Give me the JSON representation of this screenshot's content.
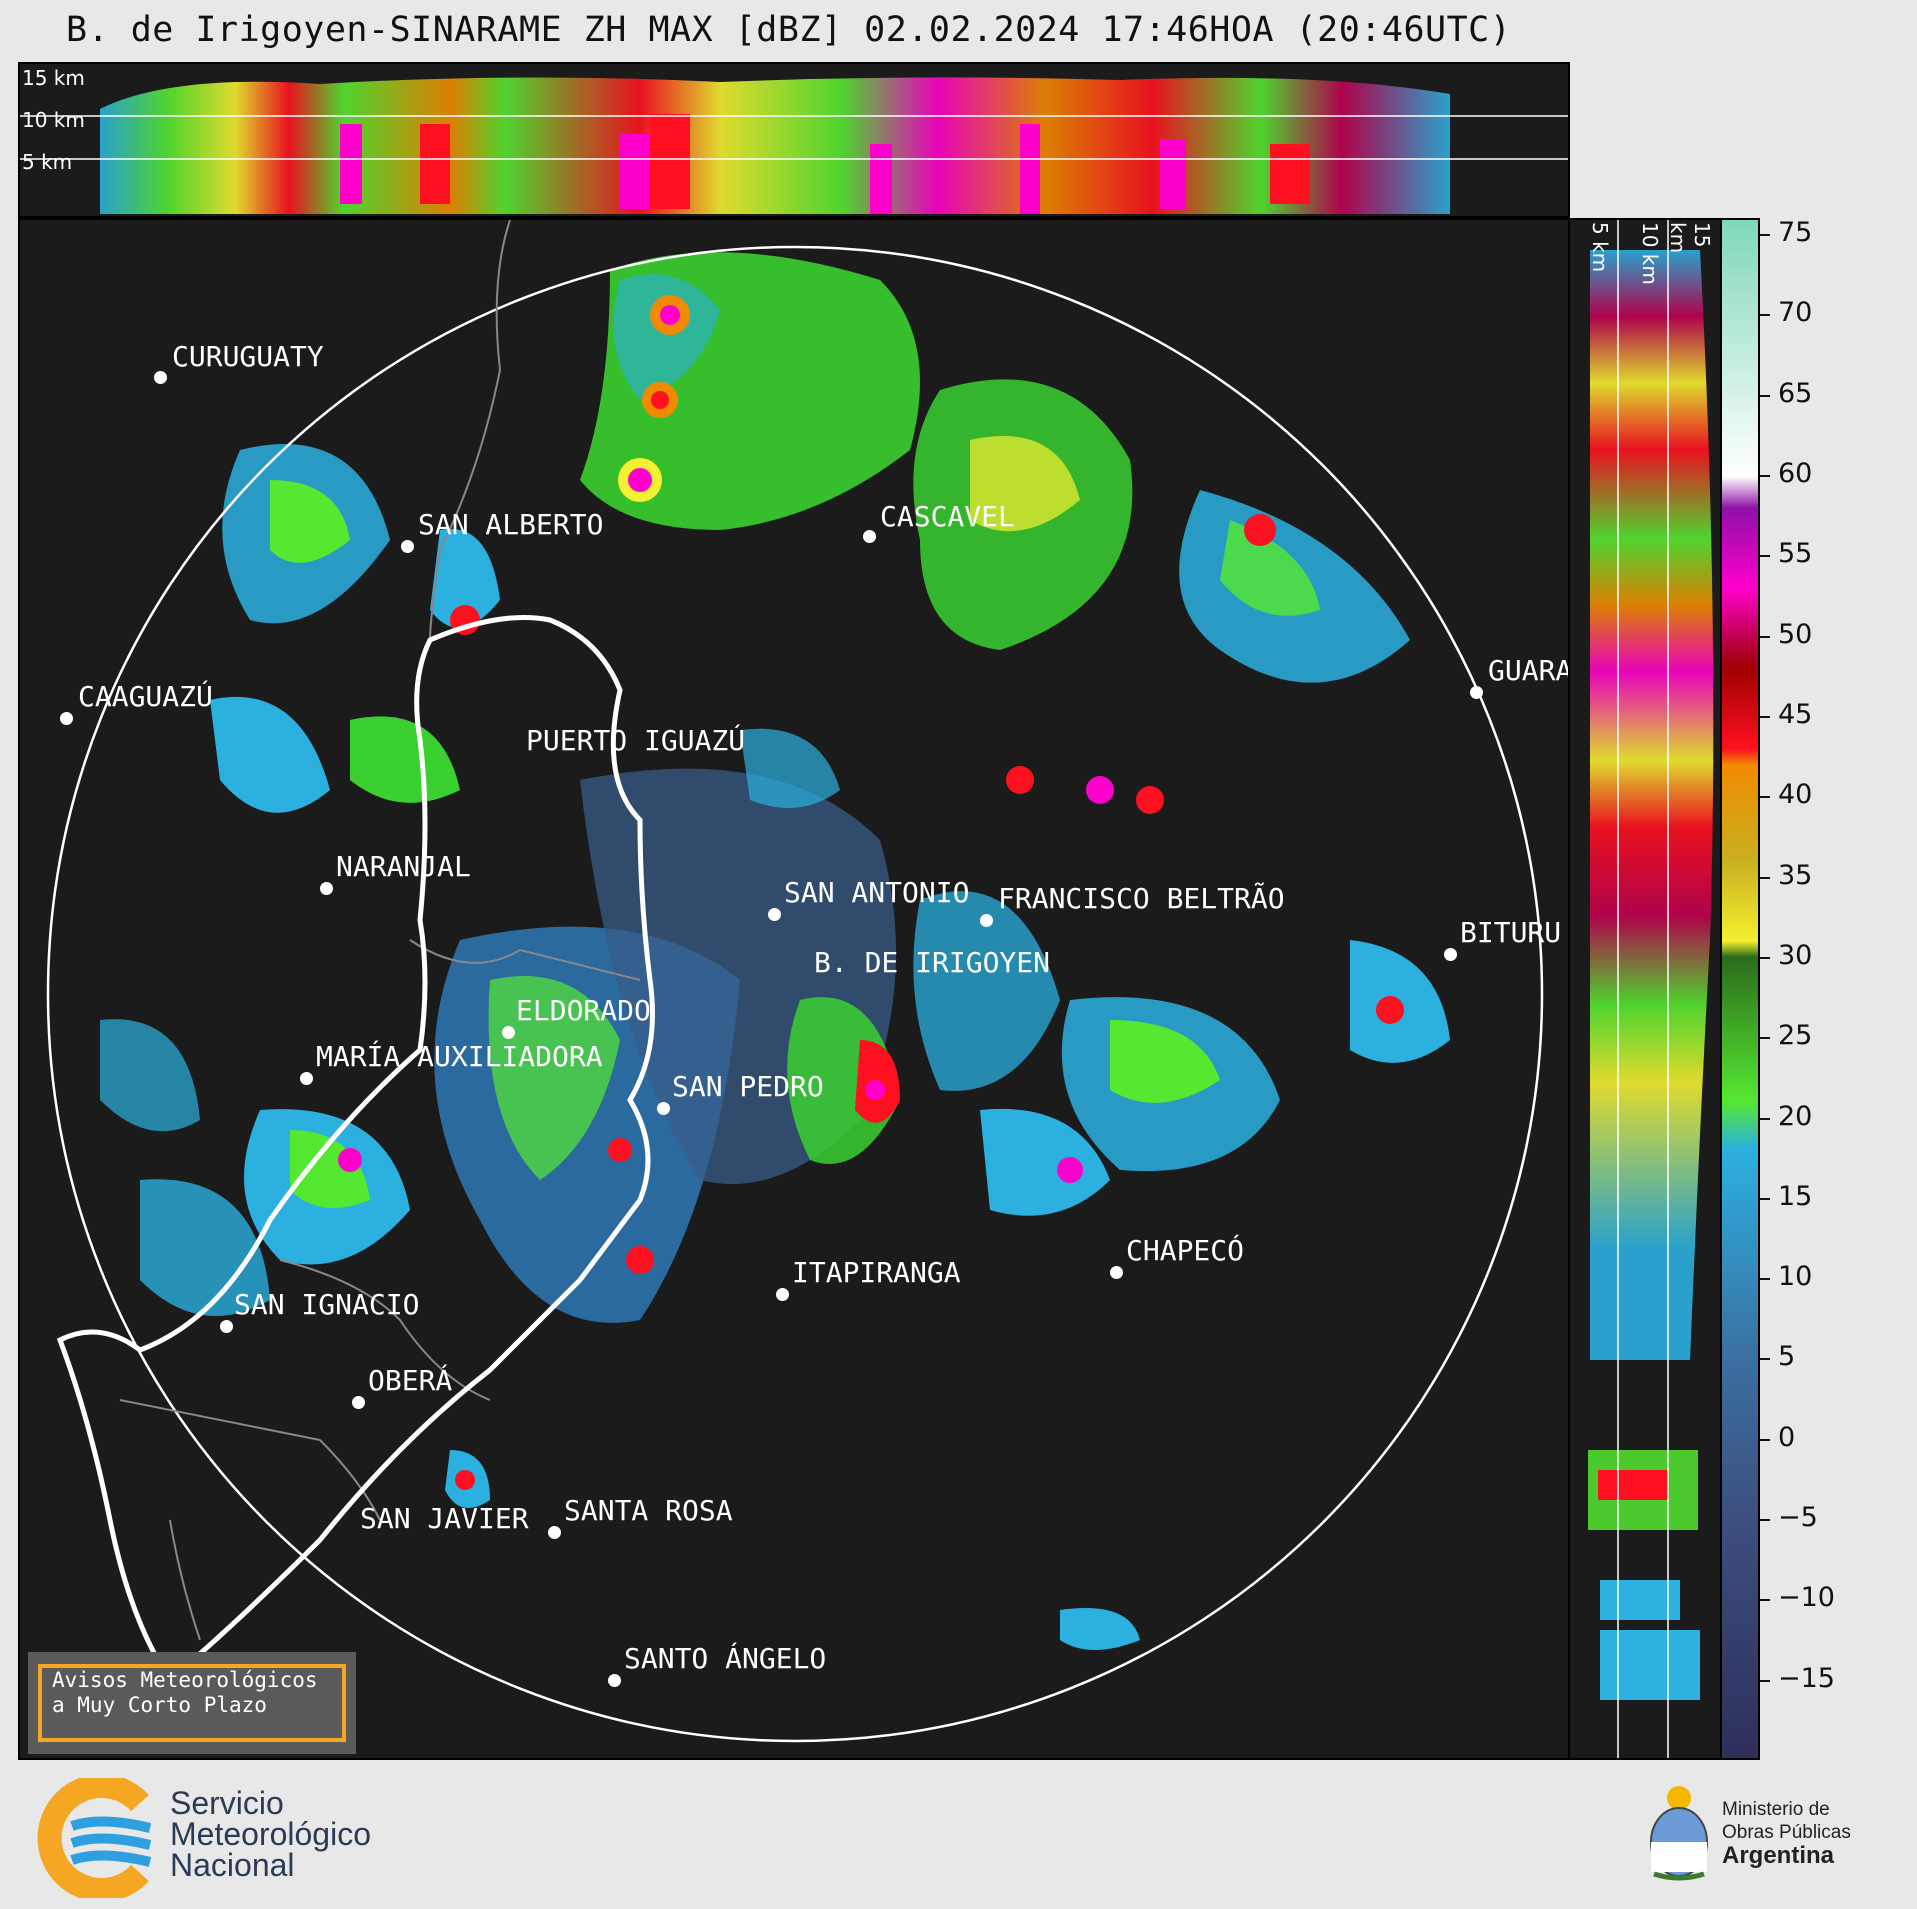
{
  "title": "B. de Irigoyen-SINARAME ZH MAX [dBZ] 02.02.2024 17:46HOA (20:46UTC)",
  "top_panel": {
    "km_labels": [
      "15 km",
      "10 km",
      "5 km"
    ]
  },
  "side_panel": {
    "km_labels": [
      "5 km",
      "10 km",
      "15 km"
    ]
  },
  "colorbar": {
    "ticks": [
      "75",
      "70",
      "65",
      "60",
      "55",
      "50",
      "45",
      "40",
      "35",
      "30",
      "25",
      "20",
      "15",
      "10",
      "5",
      "0",
      "−5",
      "−10",
      "−15"
    ],
    "range": [
      -20,
      76
    ],
    "stops": [
      {
        "value": 76,
        "color": "#7fd8b8"
      },
      {
        "value": 60,
        "color": "#ffffff"
      },
      {
        "value": 58,
        "color": "#8f0fa8"
      },
      {
        "value": 53,
        "color": "#ff00cc"
      },
      {
        "value": 50,
        "color": "#c00050"
      },
      {
        "value": 48,
        "color": "#a00000"
      },
      {
        "value": 43,
        "color": "#ff1020"
      },
      {
        "value": 42,
        "color": "#f28a00"
      },
      {
        "value": 36,
        "color": "#c8b020"
      },
      {
        "value": 31,
        "color": "#f5f030"
      },
      {
        "value": 30,
        "color": "#2b6b1c"
      },
      {
        "value": 21,
        "color": "#55e830"
      },
      {
        "value": 18,
        "color": "#2bb0e0"
      },
      {
        "value": 5,
        "color": "#3a70a0"
      },
      {
        "value": -5,
        "color": "#3d4f80"
      },
      {
        "value": -20,
        "color": "#2e2f5a"
      }
    ]
  },
  "cities": [
    {
      "name": "CURUGUATY"
    },
    {
      "name": "SAN ALBERTO"
    },
    {
      "name": "CASCAVEL"
    },
    {
      "name": "CAAGUAZÚ"
    },
    {
      "name": "GUARA"
    },
    {
      "name": "PUERTO IGUAZÚ"
    },
    {
      "name": "NARANJAL"
    },
    {
      "name": "SAN ANTONIO"
    },
    {
      "name": "FRANCISCO BELTRÃO"
    },
    {
      "name": "B. DE IRIGOYEN"
    },
    {
      "name": "BITURU"
    },
    {
      "name": "ELDORADO"
    },
    {
      "name": "MARÍA AUXILIADORA"
    },
    {
      "name": "SAN PEDRO"
    },
    {
      "name": "CHAPECÓ"
    },
    {
      "name": "SAN IGNACIO"
    },
    {
      "name": "ITAPIRANGA"
    },
    {
      "name": "OBERÁ"
    },
    {
      "name": "SAN JAVIER"
    },
    {
      "name": "SANTA ROSA"
    },
    {
      "name": "SANTO ÁNGELO"
    }
  ],
  "warning": {
    "line1": "Avisos Meteorológicos",
    "line2": "a Muy Corto Plazo"
  },
  "footer": {
    "smn_line1": "Servicio",
    "smn_line2": "Meteorológico",
    "smn_line3": "Nacional",
    "mop_line1": "Ministerio de",
    "mop_line2": "Obras Públicas",
    "mop_line3": "Argentina",
    "smn_logo_icon": "smn-logo-icon",
    "coat_icon": "argentina-coat-of-arms-icon"
  }
}
